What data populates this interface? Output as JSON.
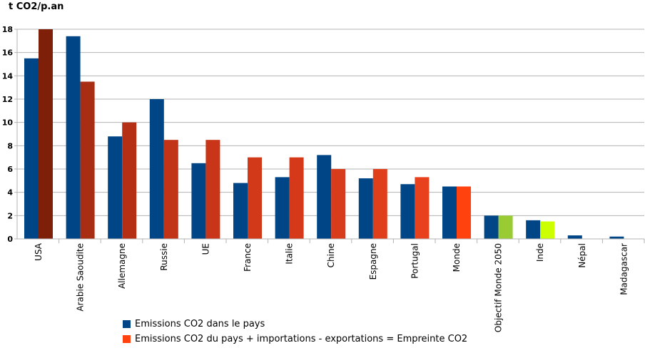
{
  "chart_data": {
    "type": "bar",
    "ylabel": "t CO2/p.an",
    "ylim": [
      0,
      18
    ],
    "yticks": [
      0,
      2,
      4,
      6,
      8,
      10,
      12,
      14,
      16,
      18
    ],
    "grid": true,
    "categories": [
      "USA",
      "Arabie Saoudite",
      "Allemagne",
      "Russie",
      "UE",
      "France",
      "Italie",
      "Chine",
      "Espagne",
      "Portugal",
      "Monde",
      "Objectif Monde 2050",
      "Inde",
      "Népal",
      "Madagascar"
    ],
    "series": [
      {
        "name": "Emissions CO2 dans le pays",
        "values": [
          15.5,
          17.4,
          8.8,
          12.0,
          6.5,
          4.8,
          5.3,
          7.2,
          5.2,
          4.7,
          4.5,
          2.0,
          1.6,
          0.3,
          0.2
        ],
        "color": "#004586"
      },
      {
        "name": "Emissions CO2 du pays + importations - exportations = Empreinte CO2",
        "values": [
          18.0,
          13.5,
          10.0,
          8.5,
          8.5,
          7.0,
          7.0,
          6.0,
          6.0,
          5.3,
          4.5,
          2.0,
          1.5,
          null,
          null
        ],
        "colors": [
          "#7e1f0a",
          "#a92d12",
          "#b52f14",
          "#c13417",
          "#c83518",
          "#d23919",
          "#d5391a",
          "#d93c1b",
          "#e03f1c",
          "#e8411d",
          "#ff420e",
          "#99cc33",
          "#ccff00",
          "#ff420e",
          "#ff420e"
        ],
        "color": "#ff420e"
      }
    ],
    "legend_position": "bottom-left"
  }
}
